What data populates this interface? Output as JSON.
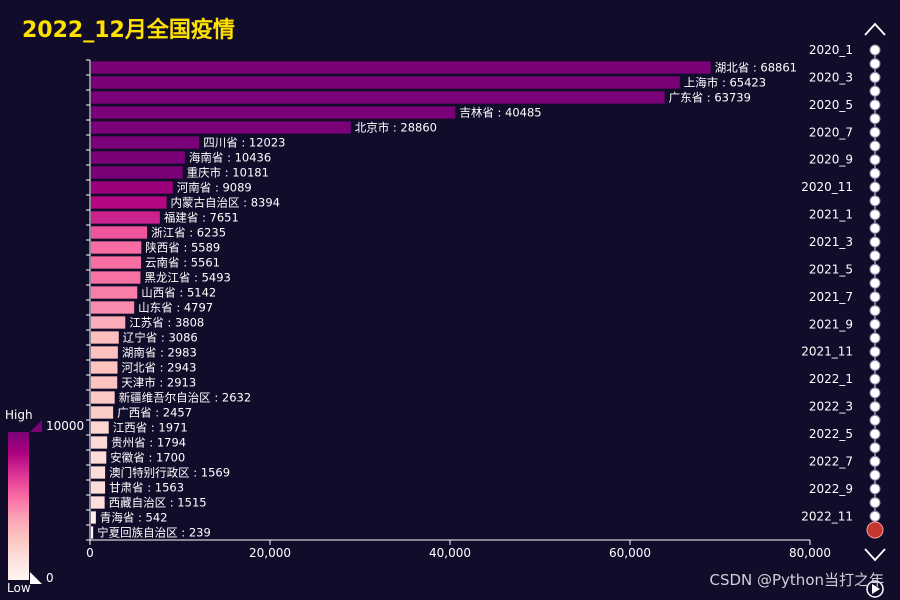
{
  "title": "2022_12月全国疫情",
  "watermark": "CSDN @Python当打之年",
  "colors": {
    "background": "#100c2a",
    "title": "#ffe100",
    "text": "#ffffff"
  },
  "visual_map": {
    "min": 0,
    "max": 10000,
    "min_label": "0",
    "max_label": "10000",
    "high_text": "High",
    "low_text": "Low",
    "colors": [
      "#fff7f3",
      "#fde0dd",
      "#fcc5c0",
      "#fa9fb5",
      "#f768a1",
      "#dd3497",
      "#ae017e",
      "#7a0177"
    ]
  },
  "timeline": {
    "labels": [
      "2020_1",
      "2020_3",
      "2020_5",
      "2020_7",
      "2020_9",
      "2020_11",
      "2021_1",
      "2021_3",
      "2021_5",
      "2021_7",
      "2021_9",
      "2021_11",
      "2022_1",
      "2022_3",
      "2022_5",
      "2022_7",
      "2022_9",
      "2022_11"
    ],
    "current_label": "2022_12",
    "icons": {
      "prev": "chevron-up-icon",
      "next": "chevron-down-icon",
      "play": "play-icon"
    }
  },
  "chart_data": {
    "type": "bar",
    "orientation": "horizontal",
    "xlim": [
      0,
      80000
    ],
    "x_ticks": [
      "0",
      "20,000",
      "40,000",
      "60,000",
      "80,000"
    ],
    "x_tick_values": [
      0,
      20000,
      40000,
      60000,
      80000
    ],
    "bars": [
      {
        "name": "湖北省",
        "value": 68861,
        "label": "湖北省 : 68861"
      },
      {
        "name": "上海市",
        "value": 65423,
        "label": "上海市 : 65423"
      },
      {
        "name": "广东省",
        "value": 63739,
        "label": "广东省 : 63739"
      },
      {
        "name": "吉林省",
        "value": 40485,
        "label": "吉林省 : 40485"
      },
      {
        "name": "北京市",
        "value": 28860,
        "label": "北京市 : 28860"
      },
      {
        "name": "四川省",
        "value": 12023,
        "label": "四川省 : 12023"
      },
      {
        "name": "海南省",
        "value": 10436,
        "label": "海南省 : 10436"
      },
      {
        "name": "重庆市",
        "value": 10181,
        "label": "重庆市 : 10181"
      },
      {
        "name": "河南省",
        "value": 9089,
        "label": "河南省 : 9089"
      },
      {
        "name": "内蒙古自治区",
        "value": 8394,
        "label": "内蒙古自治区 : 8394"
      },
      {
        "name": "福建省",
        "value": 7651,
        "label": "福建省 : 7651"
      },
      {
        "name": "浙江省",
        "value": 6235,
        "label": "浙江省 : 6235"
      },
      {
        "name": "陕西省",
        "value": 5589,
        "label": "陕西省 : 5589"
      },
      {
        "name": "云南省",
        "value": 5561,
        "label": "云南省 : 5561"
      },
      {
        "name": "黑龙江省",
        "value": 5493,
        "label": "黑龙江省 : 5493"
      },
      {
        "name": "山西省",
        "value": 5142,
        "label": "山西省 : 5142"
      },
      {
        "name": "山东省",
        "value": 4797,
        "label": "山东省 : 4797"
      },
      {
        "name": "江苏省",
        "value": 3808,
        "label": "江苏省 : 3808"
      },
      {
        "name": "辽宁省",
        "value": 3086,
        "label": "辽宁省 : 3086"
      },
      {
        "name": "湖南省",
        "value": 2983,
        "label": "湖南省 : 2983"
      },
      {
        "name": "河北省",
        "value": 2943,
        "label": "河北省 : 2943"
      },
      {
        "name": "天津市",
        "value": 2913,
        "label": "天津市 : 2913"
      },
      {
        "name": "新疆维吾尔自治区",
        "value": 2632,
        "label": "新疆维吾尔自治区 : 2632"
      },
      {
        "name": "广西省",
        "value": 2457,
        "label": "广西省 : 2457"
      },
      {
        "name": "江西省",
        "value": 1971,
        "label": "江西省 : 1971"
      },
      {
        "name": "贵州省",
        "value": 1794,
        "label": "贵州省 : 1794"
      },
      {
        "name": "安徽省",
        "value": 1700,
        "label": "安徽省 : 1700"
      },
      {
        "name": "澳门特别行政区",
        "value": 1569,
        "label": "澳门特别行政区 : 1569"
      },
      {
        "name": "甘肃省",
        "value": 1563,
        "label": "甘肃省 : 1563"
      },
      {
        "name": "西藏自治区",
        "value": 1515,
        "label": "西藏自治区 : 1515"
      },
      {
        "name": "青海省",
        "value": 542,
        "label": "青海省 : 542"
      },
      {
        "name": "宁夏回族自治区",
        "value": 239,
        "label": "宁夏回族自治区 : 239"
      }
    ]
  }
}
